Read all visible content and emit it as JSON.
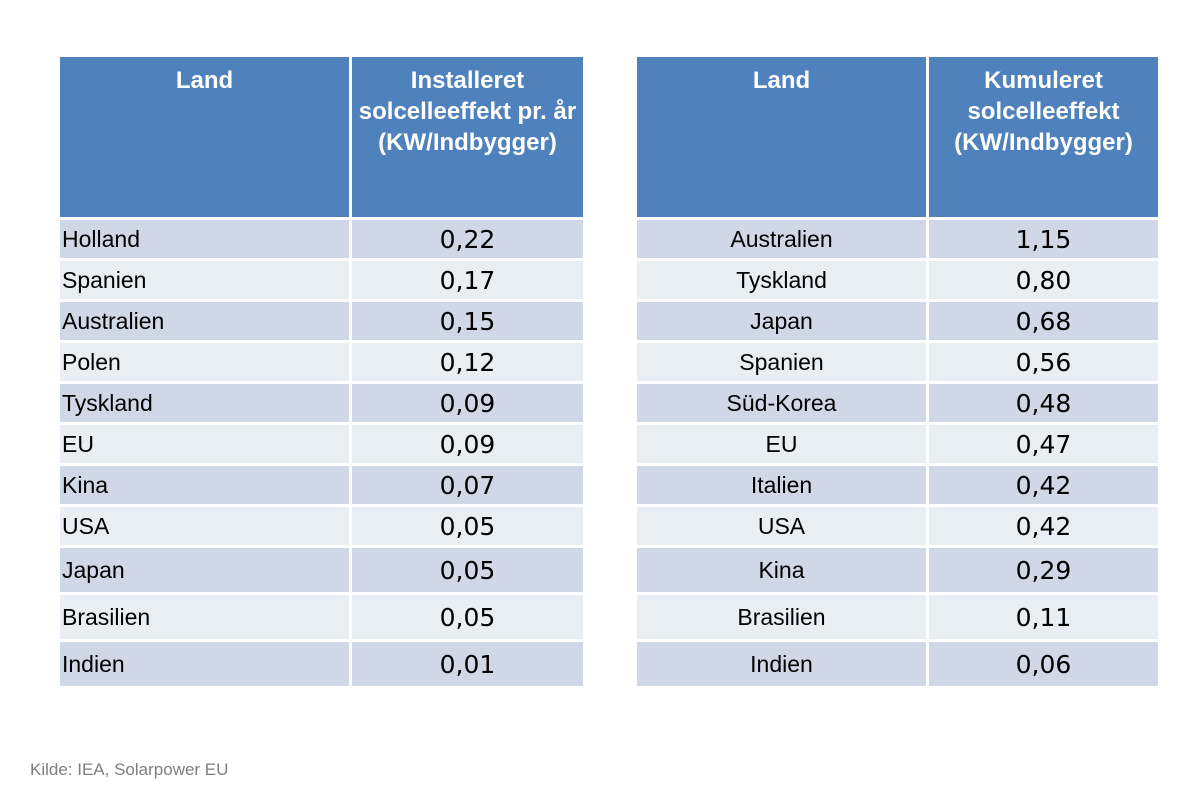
{
  "chart_data": [
    {
      "type": "table",
      "columns": [
        "Land",
        "Installeret solcelleeffekt pr. år (KW/Indbygger)"
      ],
      "rows": [
        [
          "Holland",
          "0,22"
        ],
        [
          "Spanien",
          "0,17"
        ],
        [
          "Australien",
          "0,15"
        ],
        [
          "Polen",
          "0,12"
        ],
        [
          "Tyskland",
          "0,09"
        ],
        [
          "EU",
          "0,09"
        ],
        [
          "Kina",
          "0,07"
        ],
        [
          "USA",
          "0,05"
        ],
        [
          "Japan",
          "0,05"
        ],
        [
          "Brasilien",
          "0,05"
        ],
        [
          "Indien",
          "0,01"
        ]
      ]
    },
    {
      "type": "table",
      "columns": [
        "Land",
        "Kumuleret solcelleeffekt (KW/Indbygger)"
      ],
      "rows": [
        [
          "Australien",
          "1,15"
        ],
        [
          "Tyskland",
          "0,80"
        ],
        [
          "Japan",
          "0,68"
        ],
        [
          "Spanien",
          "0,56"
        ],
        [
          "Süd-Korea",
          "0,48"
        ],
        [
          "EU",
          "0,47"
        ],
        [
          "Italien",
          "0,42"
        ],
        [
          "USA",
          "0,42"
        ],
        [
          "Kina",
          "0,29"
        ],
        [
          "Brasilien",
          "0,11"
        ],
        [
          "Indien",
          "0,06"
        ]
      ]
    }
  ],
  "colors": {
    "header": "#4f81bd",
    "row_dark": "#d0d8e8",
    "row_light": "#e9edf4",
    "source_text": "#7f7f7f"
  },
  "source": "Kilde: IEA, Solarpower EU"
}
